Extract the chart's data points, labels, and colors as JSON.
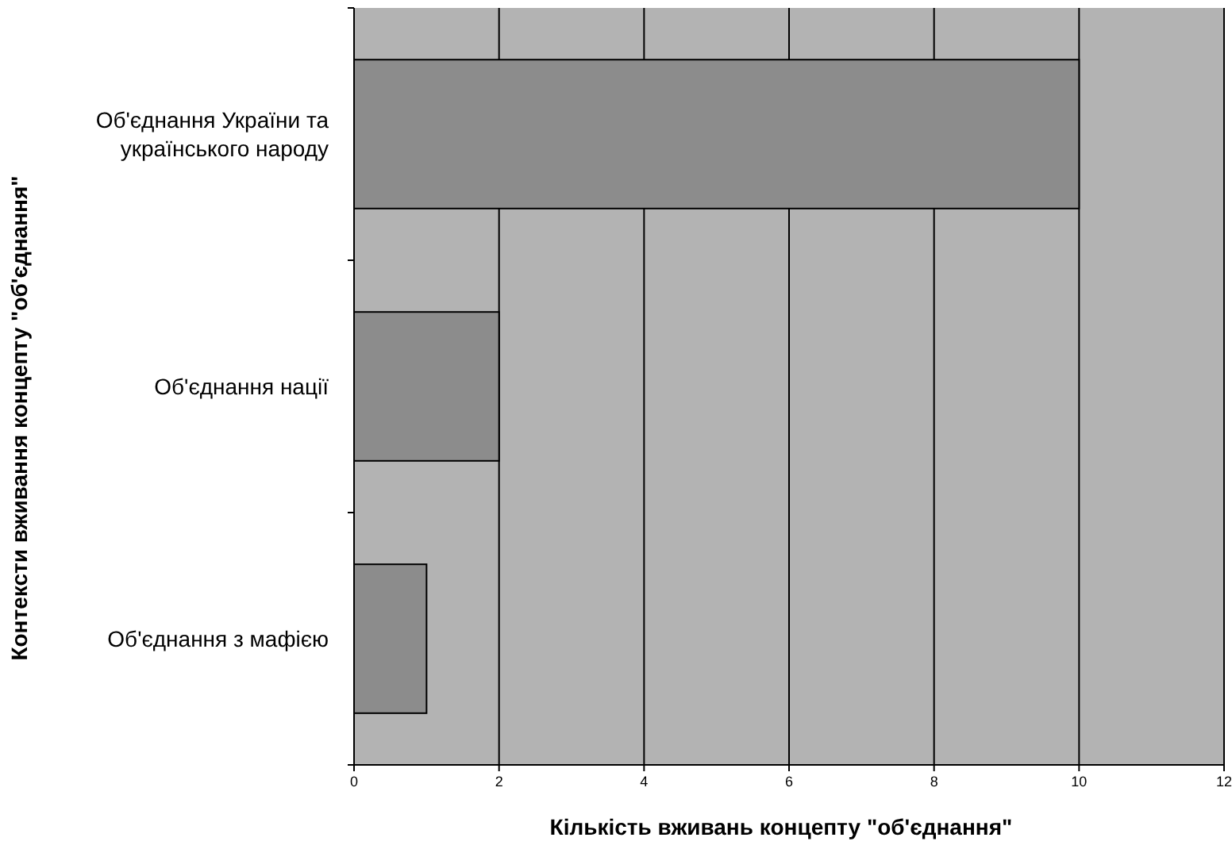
{
  "chart_data": {
    "type": "bar",
    "orientation": "horizontal",
    "categories": [
      "Об'єднання України та українського народу",
      "Об'єднання нації",
      "Об'єднання з мафією"
    ],
    "values": [
      10,
      2,
      1
    ],
    "color": "#8c8c8c",
    "xlim": [
      0,
      12
    ],
    "xticks": [
      0,
      2,
      4,
      6,
      8,
      10,
      12
    ],
    "grid": "x",
    "xlabel": "Кількість вживань концепту \"об'єднання\"",
    "ylabel": "Контексти вживання концепту \"об'єднання\""
  }
}
